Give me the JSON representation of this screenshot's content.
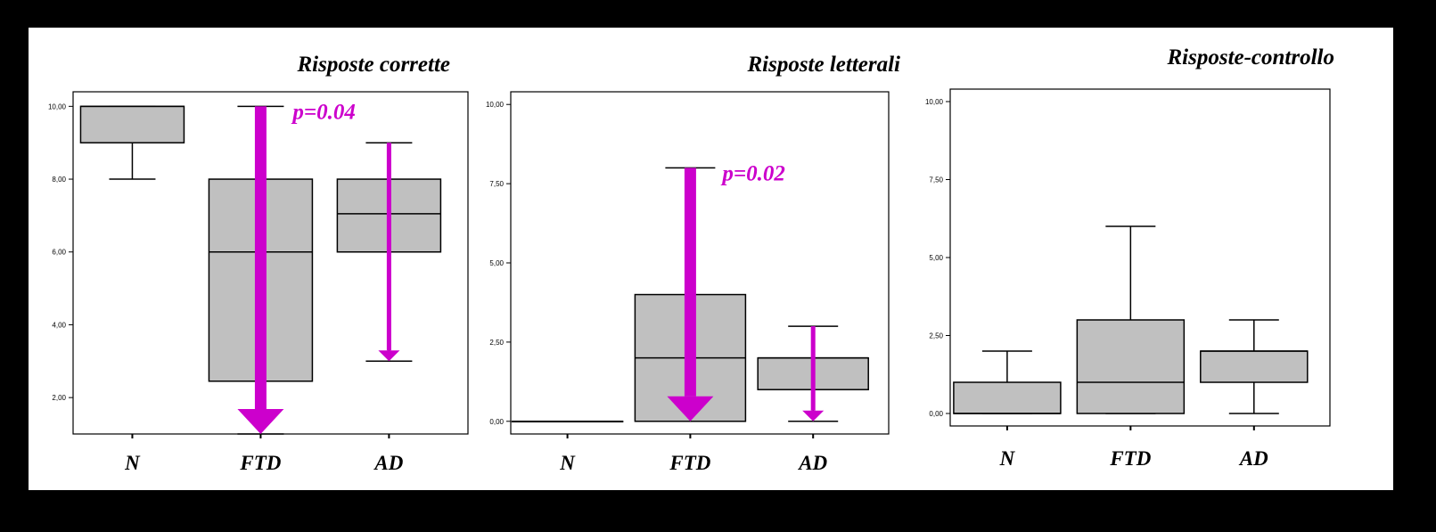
{
  "colors": {
    "box_fill": "#c0c0c0",
    "arrow": "#cc00cc",
    "background": "#000000",
    "panel": "#ffffff"
  },
  "chart_data": [
    {
      "type": "boxplot",
      "title": "Risposte corrette",
      "categories": [
        "N",
        "FTD",
        "AD"
      ],
      "ylim": [
        1,
        10.4
      ],
      "yticks": [
        2,
        4,
        6,
        8,
        10
      ],
      "ytick_labels": [
        "2,00",
        "4,00",
        "6,00",
        "8,00",
        "10,00"
      ],
      "boxes": [
        {
          "min": 8,
          "q1": 9,
          "median": 10,
          "q3": 10,
          "max": 10
        },
        {
          "min": 1,
          "q1": 2.45,
          "median": 6,
          "q3": 8,
          "max": 10
        },
        {
          "min": 3,
          "q1": 6,
          "median": 7.05,
          "q3": 8,
          "max": 9
        }
      ],
      "annotations": [
        {
          "category": "FTD",
          "from": 10,
          "to": 1,
          "style": "thick",
          "label": "p=0.04"
        },
        {
          "category": "AD",
          "from": 9,
          "to": 3,
          "style": "thin",
          "label": ""
        }
      ]
    },
    {
      "type": "boxplot",
      "title": "Risposte letterali",
      "categories": [
        "N",
        "FTD",
        "AD"
      ],
      "ylim": [
        -0.4,
        10.4
      ],
      "yticks": [
        0,
        2.5,
        5,
        7.5,
        10
      ],
      "ytick_labels": [
        "0,00",
        "2,50",
        "5,00",
        "7,50",
        "10,00"
      ],
      "boxes": [
        {
          "min": 0,
          "q1": 0,
          "median": 0,
          "q3": 0,
          "max": 0
        },
        {
          "min": 0,
          "q1": 0,
          "median": 2,
          "q3": 4,
          "max": 8
        },
        {
          "min": 0,
          "q1": 1,
          "median": 2,
          "q3": 2,
          "max": 3
        }
      ],
      "annotations": [
        {
          "category": "FTD",
          "from": 8,
          "to": 0,
          "style": "thick",
          "label": "p=0.02"
        },
        {
          "category": "AD",
          "from": 3,
          "to": 0,
          "style": "thin",
          "label": ""
        }
      ]
    },
    {
      "type": "boxplot",
      "title": "Risposte-controllo",
      "categories": [
        "N",
        "FTD",
        "AD"
      ],
      "ylim": [
        -0.4,
        10.4
      ],
      "yticks": [
        0,
        2.5,
        5,
        7.5,
        10
      ],
      "ytick_labels": [
        "0,00",
        "2,50",
        "5,00",
        "7,50",
        "10,00"
      ],
      "boxes": [
        {
          "min": 0,
          "q1": 0,
          "median": 0,
          "q3": 1,
          "max": 2
        },
        {
          "min": 0,
          "q1": 0,
          "median": 1,
          "q3": 3,
          "max": 6
        },
        {
          "min": 0,
          "q1": 1,
          "median": 2,
          "q3": 2,
          "max": 3
        }
      ],
      "annotations": []
    }
  ]
}
